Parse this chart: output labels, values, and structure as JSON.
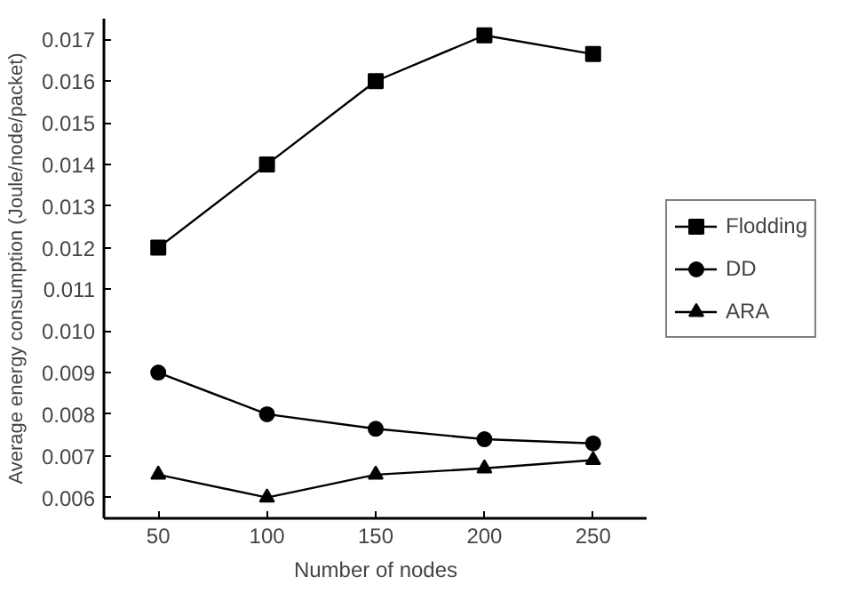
{
  "chart_data": {
    "type": "line",
    "xlabel": "Number of nodes",
    "ylabel": "Average energy consumption (Joule/node/packet)",
    "x": [
      50,
      100,
      150,
      200,
      250
    ],
    "series": [
      {
        "name": "Flodding",
        "color": "#000000",
        "marker": "square",
        "values": [
          0.012,
          0.014,
          0.016,
          0.0171,
          0.01665
        ]
      },
      {
        "name": "DD",
        "color": "#000000",
        "marker": "circle",
        "values": [
          0.009,
          0.008,
          0.00765,
          0.0074,
          0.0073
        ]
      },
      {
        "name": "ARA",
        "color": "#000000",
        "marker": "triangle",
        "values": [
          0.00655,
          0.006,
          0.00655,
          0.0067,
          0.0069
        ]
      }
    ],
    "xlim": [
      25,
      275
    ],
    "xticks": [
      50,
      100,
      150,
      200,
      250
    ],
    "ylim": [
      0.0055,
      0.0175
    ],
    "yticks": [
      {
        "value": 0.006,
        "label": "0.006"
      },
      {
        "value": 0.007,
        "label": "0.007"
      },
      {
        "value": 0.008,
        "label": "0.008"
      },
      {
        "value": 0.009,
        "label": "0.009"
      },
      {
        "value": 0.01,
        "label": "0.010"
      },
      {
        "value": 0.011,
        "label": "0.011"
      },
      {
        "value": 0.012,
        "label": "0.012"
      },
      {
        "value": 0.013,
        "label": "0.013"
      },
      {
        "value": 0.014,
        "label": "0.014"
      },
      {
        "value": 0.015,
        "label": "0.015"
      },
      {
        "value": 0.016,
        "label": "0.016"
      },
      {
        "value": 0.017,
        "label": "0.017"
      }
    ],
    "grid": false,
    "legend": "right",
    "line_style": "solid"
  }
}
